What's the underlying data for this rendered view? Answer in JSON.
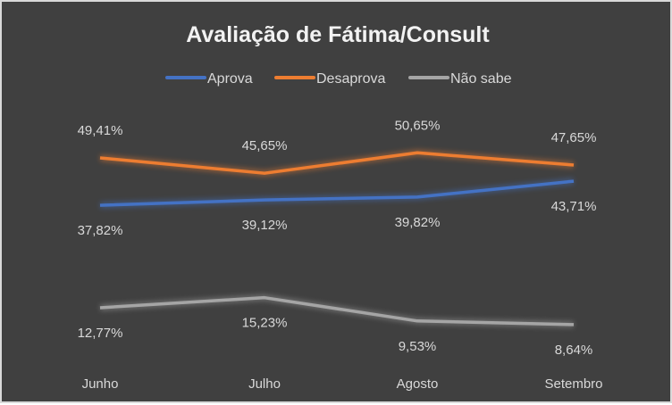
{
  "chart_data": {
    "type": "line",
    "title": "Avaliação de Fátima/Consult",
    "categories": [
      "Junho",
      "Julho",
      "Agosto",
      "Setembro"
    ],
    "series": [
      {
        "name": "Aprova",
        "color": "#4472c4",
        "values": [
          37.82,
          39.12,
          39.82,
          43.71
        ],
        "labels": [
          "37,82%",
          "39,12%",
          "39,82%",
          "43,71%"
        ],
        "label_pos": "below"
      },
      {
        "name": "Desaprova",
        "color": "#ed7d31",
        "values": [
          49.41,
          45.65,
          50.65,
          47.65
        ],
        "labels": [
          "49,41%",
          "45,65%",
          "50,65%",
          "47,65%"
        ],
        "label_pos": "above"
      },
      {
        "name": "Não sabe",
        "color": "#a5a5a5",
        "values": [
          12.77,
          15.23,
          9.53,
          8.64
        ],
        "labels": [
          "12,77%",
          "15,23%",
          "9,53%",
          "8,64%"
        ],
        "label_pos": "below"
      }
    ],
    "ylim": [
      0,
      60
    ],
    "grid": false,
    "legend": "top"
  }
}
